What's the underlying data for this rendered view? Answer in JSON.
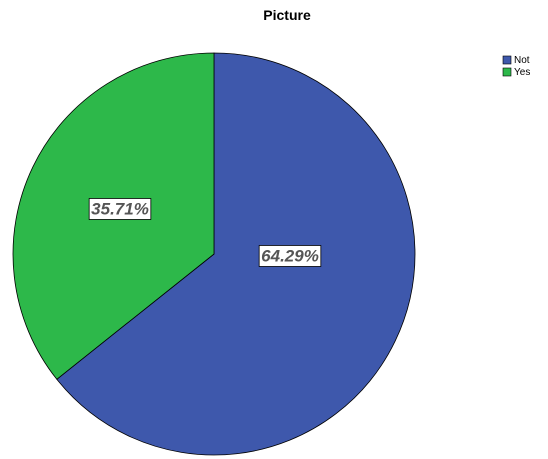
{
  "chart_data": {
    "type": "pie",
    "title": "Picture",
    "categories": [
      "Not",
      "Yes"
    ],
    "values": [
      64.29,
      35.71
    ],
    "labels": [
      "64.29%",
      "35.71%"
    ],
    "colors": [
      "#3e58ac",
      "#2db84a"
    ],
    "start_angle": "12 o'clock, clockwise",
    "legend": {
      "placement": "top-right",
      "entries": [
        "Not",
        "Yes"
      ]
    }
  }
}
